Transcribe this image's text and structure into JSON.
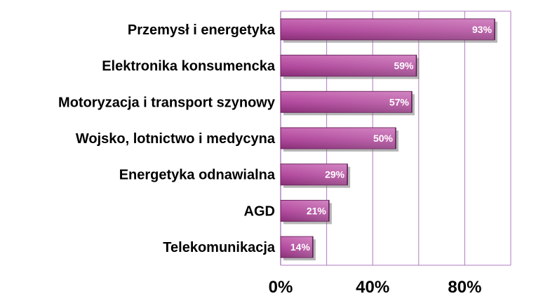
{
  "chart_data": {
    "type": "bar",
    "orientation": "horizontal",
    "categories": [
      "Przemysł i energetyka",
      "Elektronika konsumencka",
      "Motoryzacja i transport szynowy",
      "Wojsko, lotnictwo i medycyna",
      "Energetyka odnawialna",
      "AGD",
      "Telekomunikacja"
    ],
    "values": [
      93,
      59,
      57,
      50,
      29,
      21,
      14
    ],
    "value_labels": [
      "93%",
      "59%",
      "57%",
      "50%",
      "29%",
      "21%",
      "14%"
    ],
    "xlim": [
      0,
      100
    ],
    "xticks": [
      0,
      40,
      80
    ],
    "xtick_labels": [
      "0%",
      "40%",
      "80%"
    ],
    "title": "",
    "xlabel": "",
    "ylabel": "",
    "grid": "vertical",
    "legend": "none",
    "colors": {
      "bar_light": "#c86ab4",
      "bar_mid": "#b0479b",
      "bar_dark": "#8a2f78",
      "bar_edge": "#6a1f5c",
      "bar_shadow": "#7a7a7a",
      "grid": "#b07ac0",
      "axis": "#9a6ab0"
    }
  }
}
